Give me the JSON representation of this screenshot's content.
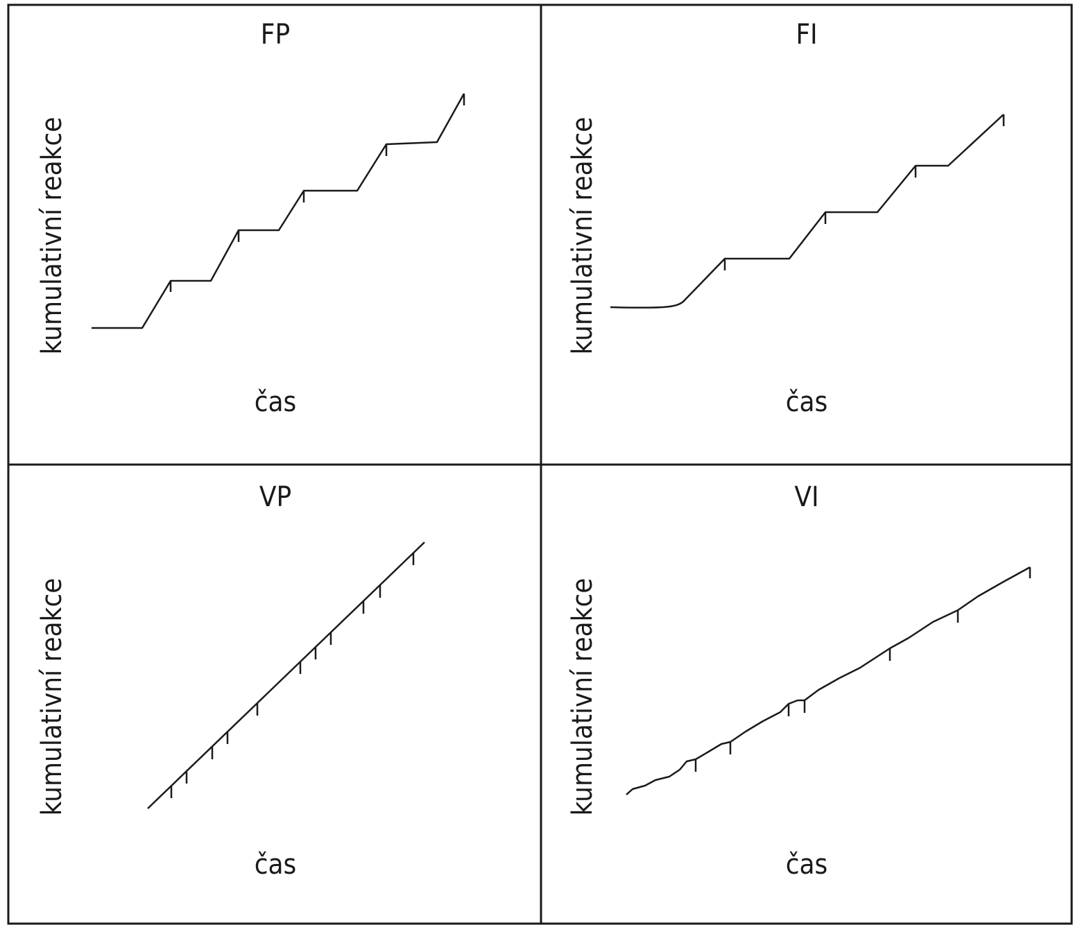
{
  "panels": [
    {
      "title": "FP",
      "y_label": "kumulativní reakce",
      "x_label": "čas"
    },
    {
      "title": "FI",
      "y_label": "kumulativní reakce",
      "x_label": "čas"
    },
    {
      "title": "VP",
      "y_label": "kumulativní reakce",
      "x_label": "čas"
    },
    {
      "title": "VI",
      "y_label": "kumulativní reakce",
      "x_label": "čas"
    }
  ]
}
